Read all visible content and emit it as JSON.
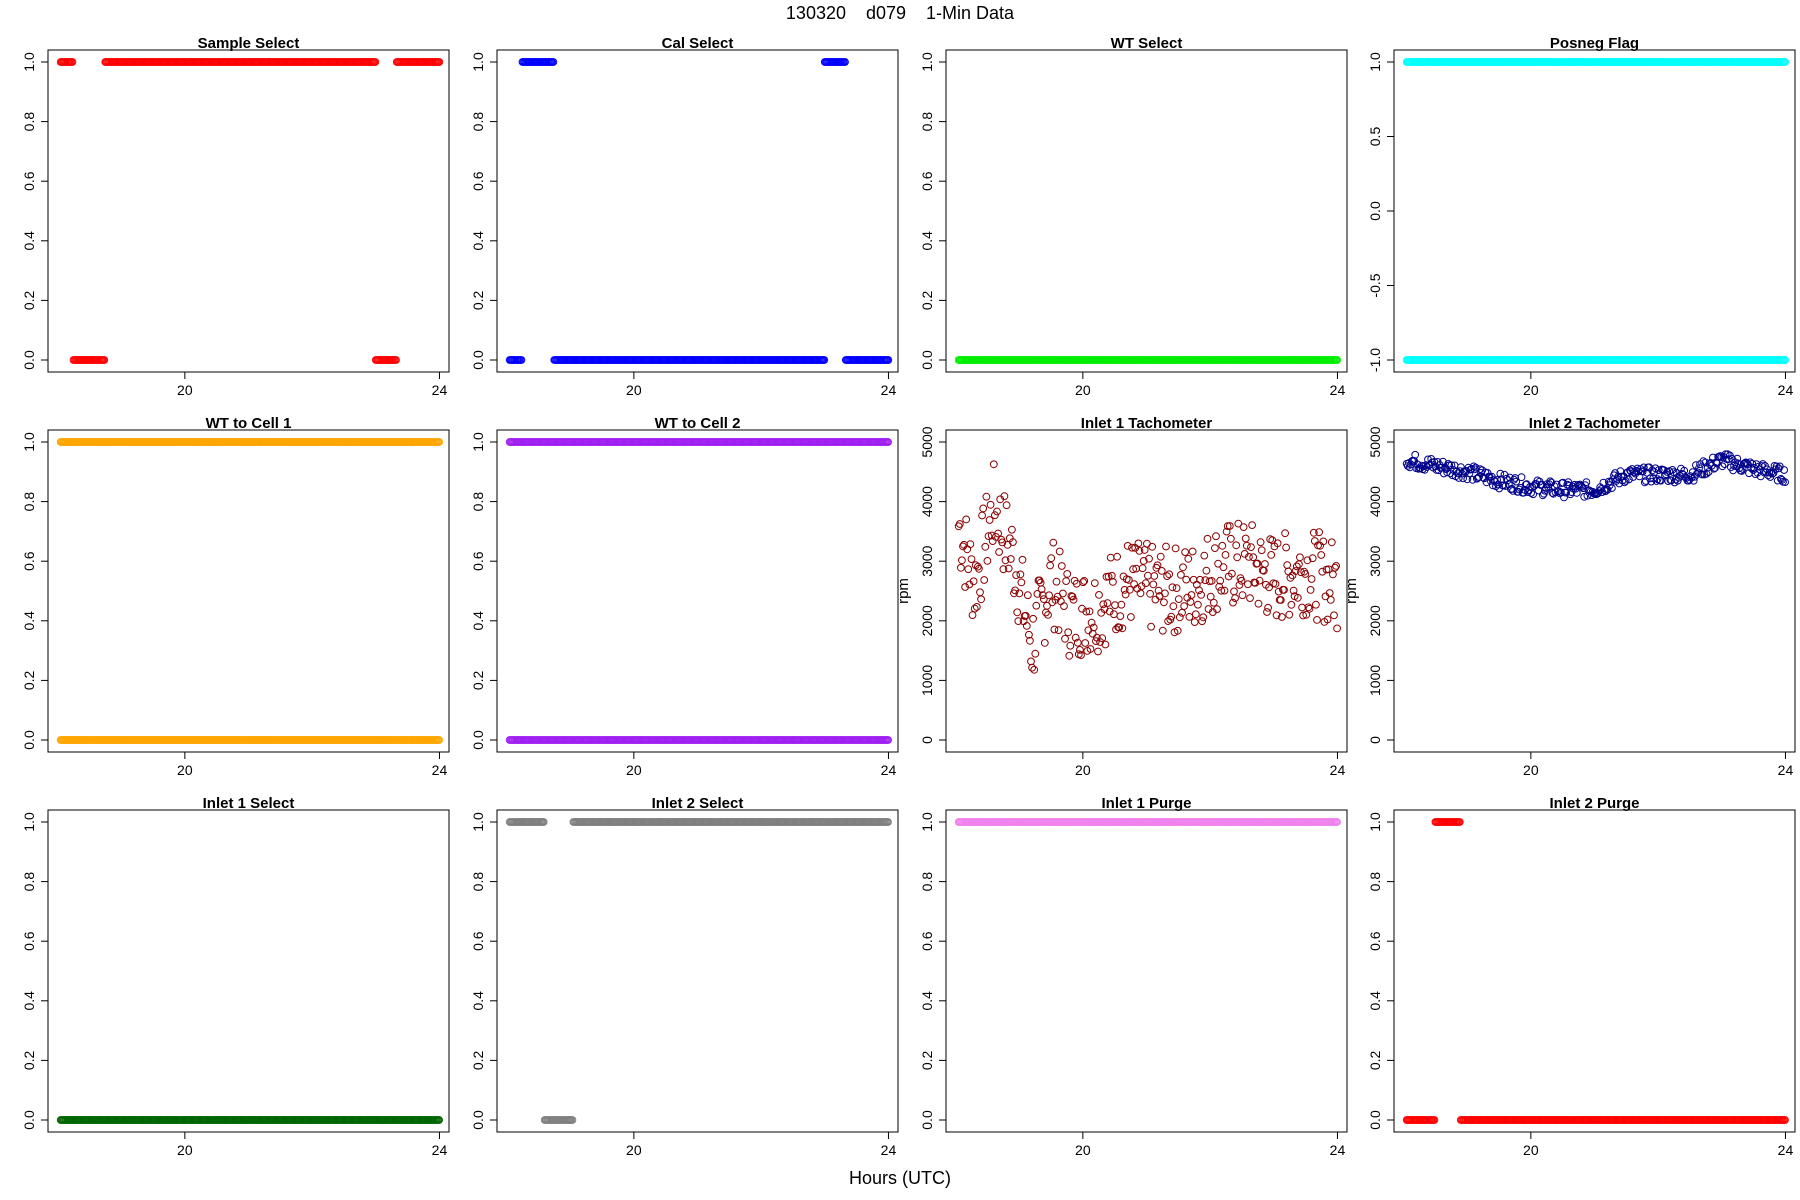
{
  "figure": {
    "title": "130320    d079    1-Min Data",
    "xlabel": "Hours (UTC)"
  },
  "chart_data": [
    {
      "type": "scatter",
      "title": "Sample Select",
      "ylabel": "",
      "color": "#ff0000",
      "xlim": [
        17.85,
        24.15
      ],
      "ylim": [
        0,
        1
      ],
      "xticks": [
        20,
        24
      ],
      "yticks": [
        0.0,
        0.2,
        0.4,
        0.6,
        0.8,
        1.0
      ],
      "ytick_labels": [
        "0.0",
        "0.2",
        "0.4",
        "0.6",
        "0.8",
        "1.0"
      ],
      "grid": false,
      "runs": [
        {
          "from": 18.05,
          "to": 18.25,
          "y": 1
        },
        {
          "from": 18.25,
          "to": 18.75,
          "y": 0
        },
        {
          "from": 18.75,
          "to": 23.0,
          "y": 1
        },
        {
          "from": 23.0,
          "to": 23.33,
          "y": 0
        },
        {
          "from": 23.33,
          "to": 24.0,
          "y": 1
        }
      ]
    },
    {
      "type": "scatter",
      "title": "Cal Select",
      "ylabel": "",
      "color": "#0000ff",
      "xlim": [
        17.85,
        24.15
      ],
      "ylim": [
        0,
        1
      ],
      "xticks": [
        20,
        24
      ],
      "yticks": [
        0.0,
        0.2,
        0.4,
        0.6,
        0.8,
        1.0
      ],
      "ytick_labels": [
        "0.0",
        "0.2",
        "0.4",
        "0.6",
        "0.8",
        "1.0"
      ],
      "grid": false,
      "runs": [
        {
          "from": 18.05,
          "to": 18.25,
          "y": 0
        },
        {
          "from": 18.25,
          "to": 18.75,
          "y": 1
        },
        {
          "from": 18.75,
          "to": 23.0,
          "y": 0
        },
        {
          "from": 23.0,
          "to": 23.33,
          "y": 1
        },
        {
          "from": 23.33,
          "to": 24.0,
          "y": 0
        }
      ]
    },
    {
      "type": "scatter",
      "title": "WT Select",
      "ylabel": "",
      "color": "#00ee00",
      "xlim": [
        17.85,
        24.15
      ],
      "ylim": [
        0,
        1
      ],
      "xticks": [
        20,
        24
      ],
      "yticks": [
        0.0,
        0.2,
        0.4,
        0.6,
        0.8,
        1.0
      ],
      "ytick_labels": [
        "0.0",
        "0.2",
        "0.4",
        "0.6",
        "0.8",
        "1.0"
      ],
      "grid": false,
      "runs": [
        {
          "from": 18.05,
          "to": 24.0,
          "y": 0
        }
      ]
    },
    {
      "type": "scatter",
      "title": "Posneg Flag",
      "ylabel": "",
      "color": "#00ffff",
      "xlim": [
        17.85,
        24.15
      ],
      "ylim": [
        -1,
        1
      ],
      "xticks": [
        20,
        24
      ],
      "yticks": [
        -1.0,
        -0.5,
        0.0,
        0.5,
        1.0
      ],
      "ytick_labels": [
        "-1.0",
        "-0.5",
        "0.0",
        "0.5",
        "1.0"
      ],
      "grid": false,
      "runs": [
        {
          "from": 18.05,
          "to": 24.0,
          "y": 1
        },
        {
          "from": 18.05,
          "to": 24.0,
          "y": -1
        }
      ]
    },
    {
      "type": "scatter",
      "title": "WT to Cell 1",
      "ylabel": "",
      "color": "#ffa500",
      "xlim": [
        17.85,
        24.15
      ],
      "ylim": [
        0,
        1
      ],
      "xticks": [
        20,
        24
      ],
      "yticks": [
        0.0,
        0.2,
        0.4,
        0.6,
        0.8,
        1.0
      ],
      "ytick_labels": [
        "0.0",
        "0.2",
        "0.4",
        "0.6",
        "0.8",
        "1.0"
      ],
      "grid": false,
      "runs": [
        {
          "from": 18.05,
          "to": 24.0,
          "y": 1
        },
        {
          "from": 18.05,
          "to": 24.0,
          "y": 0
        }
      ]
    },
    {
      "type": "scatter",
      "title": "WT to Cell 2",
      "ylabel": "",
      "color": "#a020f0",
      "xlim": [
        17.85,
        24.15
      ],
      "ylim": [
        0,
        1
      ],
      "xticks": [
        20,
        24
      ],
      "yticks": [
        0.0,
        0.2,
        0.4,
        0.6,
        0.8,
        1.0
      ],
      "ytick_labels": [
        "0.0",
        "0.2",
        "0.4",
        "0.6",
        "0.8",
        "1.0"
      ],
      "grid": false,
      "runs": [
        {
          "from": 18.05,
          "to": 24.0,
          "y": 1
        },
        {
          "from": 18.05,
          "to": 24.0,
          "y": 0
        }
      ]
    },
    {
      "type": "scatter",
      "title": "Inlet 1 Tachometer",
      "ylabel": "rpm",
      "color": "#8b0000",
      "xlim": [
        17.85,
        24.15
      ],
      "ylim": [
        0,
        5000
      ],
      "xticks": [
        20,
        24
      ],
      "yticks": [
        0,
        1000,
        2000,
        3000,
        4000,
        5000
      ],
      "ytick_labels": [
        "0",
        "1000",
        "2000",
        "3000",
        "4000",
        "5000"
      ],
      "grid": false,
      "anchors": [
        [
          18.05,
          3600
        ],
        [
          18.3,
          2600
        ],
        [
          18.6,
          3900
        ],
        [
          18.9,
          3100
        ],
        [
          19.2,
          1600
        ],
        [
          19.5,
          2700
        ],
        [
          19.8,
          2100
        ],
        [
          20.2,
          2200
        ],
        [
          20.7,
          2650
        ],
        [
          21.2,
          2500
        ],
        [
          21.7,
          2550
        ],
        [
          22.1,
          2900
        ],
        [
          22.6,
          2950
        ],
        [
          23.0,
          2700
        ],
        [
          23.5,
          2850
        ],
        [
          24.0,
          2600
        ]
      ],
      "spread": 1500,
      "sample_step": 0.0167
    },
    {
      "type": "scatter",
      "title": "Inlet 2 Tachometer",
      "ylabel": "rpm",
      "color": "#00008b",
      "xlim": [
        17.85,
        24.15
      ],
      "ylim": [
        0,
        5000
      ],
      "xticks": [
        20,
        24
      ],
      "yticks": [
        0,
        1000,
        2000,
        3000,
        4000,
        5000
      ],
      "ytick_labels": [
        "0",
        "1000",
        "2000",
        "3000",
        "4000",
        "5000"
      ],
      "grid": false,
      "anchors": [
        [
          18.05,
          4700
        ],
        [
          18.5,
          4600
        ],
        [
          19.0,
          4500
        ],
        [
          19.5,
          4350
        ],
        [
          20.0,
          4250
        ],
        [
          20.5,
          4200
        ],
        [
          21.0,
          4200
        ],
        [
          21.5,
          4450
        ],
        [
          22.0,
          4450
        ],
        [
          22.5,
          4450
        ],
        [
          23.0,
          4700
        ],
        [
          23.5,
          4550
        ],
        [
          24.0,
          4450
        ]
      ],
      "spread": 260,
      "sample_step": 0.0167
    },
    {
      "type": "scatter",
      "title": "Inlet 1 Select",
      "ylabel": "",
      "color": "#006400",
      "xlim": [
        17.85,
        24.15
      ],
      "ylim": [
        0,
        1
      ],
      "xticks": [
        20,
        24
      ],
      "yticks": [
        0.0,
        0.2,
        0.4,
        0.6,
        0.8,
        1.0
      ],
      "ytick_labels": [
        "0.0",
        "0.2",
        "0.4",
        "0.6",
        "0.8",
        "1.0"
      ],
      "grid": false,
      "runs": [
        {
          "from": 18.05,
          "to": 24.0,
          "y": 0
        }
      ]
    },
    {
      "type": "scatter",
      "title": "Inlet 2 Select",
      "ylabel": "",
      "color": "#808080",
      "xlim": [
        17.85,
        24.15
      ],
      "ylim": [
        0,
        1
      ],
      "xticks": [
        20,
        24
      ],
      "yticks": [
        0.0,
        0.2,
        0.4,
        0.6,
        0.8,
        1.0
      ],
      "ytick_labels": [
        "0.0",
        "0.2",
        "0.4",
        "0.6",
        "0.8",
        "1.0"
      ],
      "grid": false,
      "runs": [
        {
          "from": 18.05,
          "to": 18.6,
          "y": 1
        },
        {
          "from": 18.6,
          "to": 19.05,
          "y": 0
        },
        {
          "from": 19.05,
          "to": 24.0,
          "y": 1
        }
      ]
    },
    {
      "type": "scatter",
      "title": "Inlet 1 Purge",
      "ylabel": "",
      "color": "#ee82ee",
      "xlim": [
        17.85,
        24.15
      ],
      "ylim": [
        0,
        1
      ],
      "xticks": [
        20,
        24
      ],
      "yticks": [
        0.0,
        0.2,
        0.4,
        0.6,
        0.8,
        1.0
      ],
      "ytick_labels": [
        "0.0",
        "0.2",
        "0.4",
        "0.6",
        "0.8",
        "1.0"
      ],
      "grid": false,
      "runs": [
        {
          "from": 18.05,
          "to": 24.0,
          "y": 1
        }
      ]
    },
    {
      "type": "scatter",
      "title": "Inlet 2 Purge",
      "ylabel": "",
      "color": "#ff0000",
      "xlim": [
        17.85,
        24.15
      ],
      "ylim": [
        0,
        1
      ],
      "xticks": [
        20,
        24
      ],
      "yticks": [
        0.0,
        0.2,
        0.4,
        0.6,
        0.8,
        1.0
      ],
      "ytick_labels": [
        "0.0",
        "0.2",
        "0.4",
        "0.6",
        "0.8",
        "1.0"
      ],
      "grid": false,
      "runs": [
        {
          "from": 18.05,
          "to": 18.5,
          "y": 0
        },
        {
          "from": 18.5,
          "to": 18.9,
          "y": 1
        },
        {
          "from": 18.9,
          "to": 24.0,
          "y": 0
        }
      ]
    }
  ]
}
